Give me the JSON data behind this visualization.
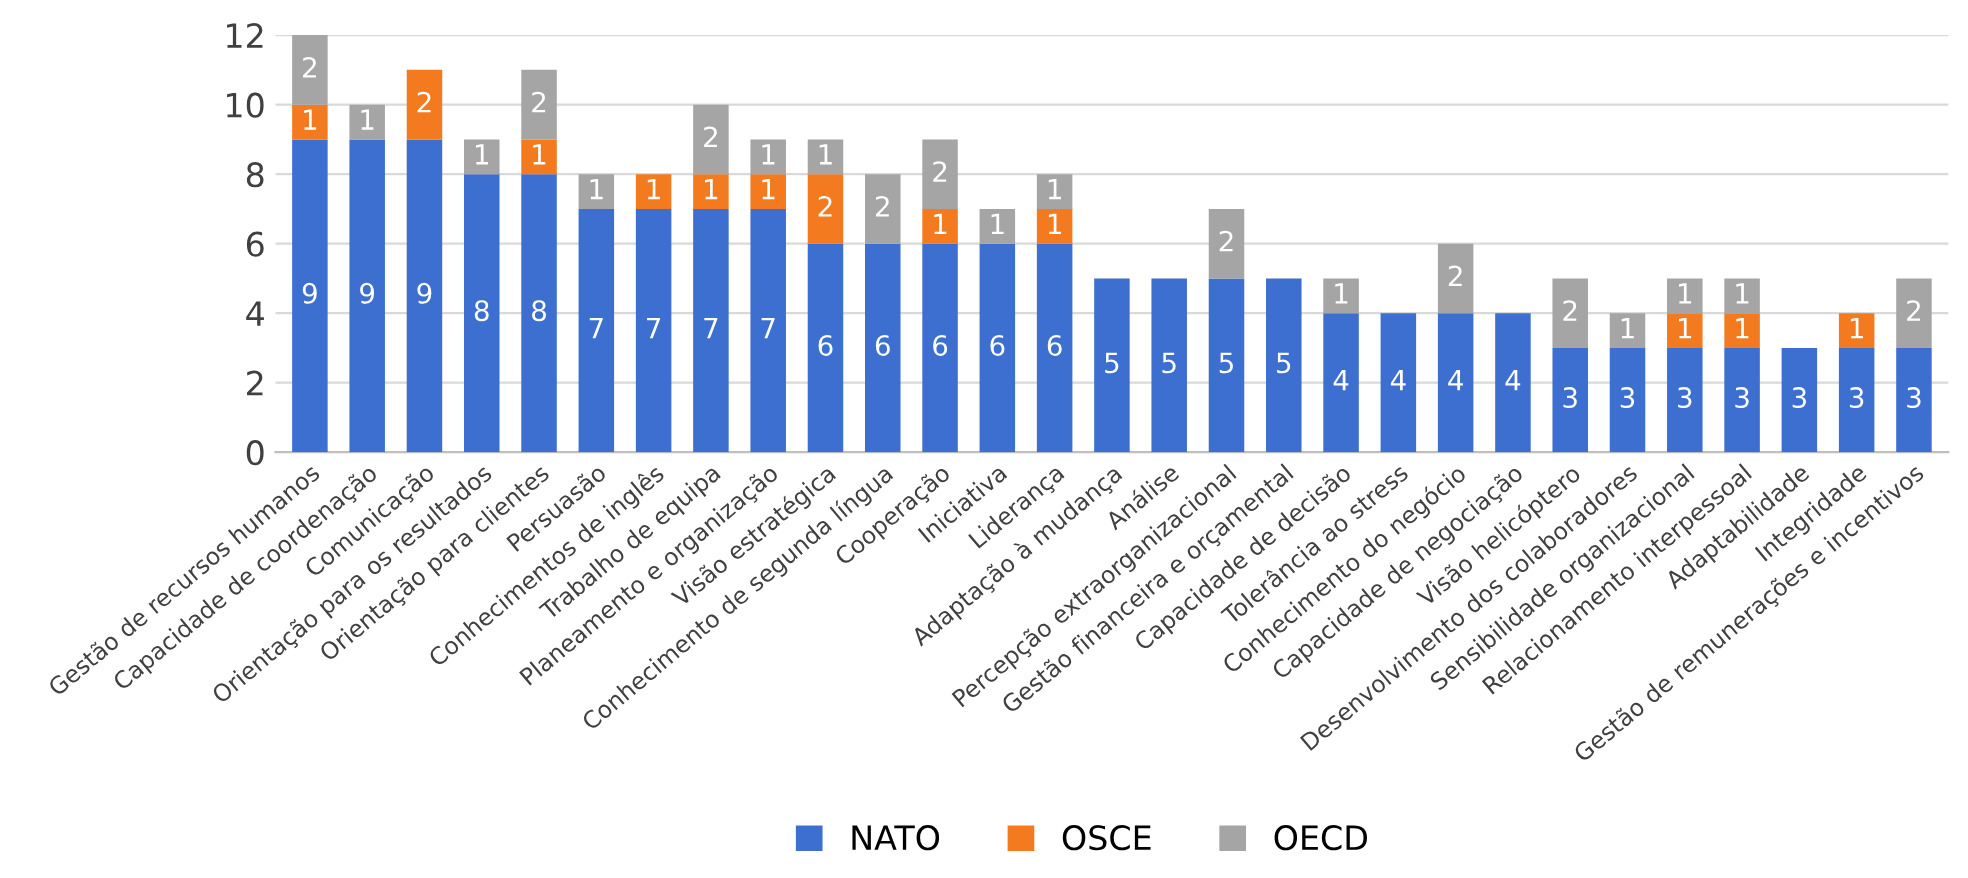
{
  "chart_data": {
    "type": "bar",
    "stacked": true,
    "categories": [
      "Gestão de recursos humanos",
      "Capacidade de coordenação",
      "Comunicação",
      "Orientação para os resultados",
      "Orientação para clientes",
      "Persuasão",
      "Conhecimentos de inglês",
      "Trabalho de equipa",
      "Planeamento e organização",
      "Visão estratégica",
      "Conhecimento de segunda língua",
      "Cooperação",
      "Iniciativa",
      "Liderança",
      "Adaptação à mudança",
      "Análise",
      "Percepção extraorganizacional",
      "Gestão financeira e orçamental",
      "Capacidade de decisão",
      "Tolerância ao stress",
      "Conhecimento do negócio",
      "Capacidade de negociação",
      "Visão helicóptero",
      "Desenvolvimento dos colaboradores",
      "Sensibilidade organizacional",
      "Relacionamento interpessoal",
      "Adaptabilidade",
      "Integridade",
      "Gestão de remunerações e incentivos"
    ],
    "series": [
      {
        "name": "NATO",
        "color": "#3d6fd0",
        "values": [
          9,
          9,
          9,
          8,
          8,
          7,
          7,
          7,
          7,
          6,
          6,
          6,
          6,
          6,
          5,
          5,
          5,
          5,
          4,
          4,
          4,
          4,
          3,
          3,
          3,
          3,
          3,
          3,
          3
        ],
        "value_labels": [
          "9",
          "9",
          "9",
          "8",
          "8",
          "7",
          "7",
          "7",
          "7",
          "6",
          "6",
          "6",
          "6",
          "6",
          "5",
          "5",
          "5",
          "5",
          "4",
          "4",
          "4",
          "4",
          "3",
          "3",
          "3",
          "3",
          "3",
          "3",
          "3"
        ]
      },
      {
        "name": "OSCE",
        "color": "#f47a20",
        "values": [
          1,
          0,
          2,
          0,
          1,
          0,
          1,
          1,
          1,
          2,
          0,
          1,
          0,
          1,
          0,
          0,
          0,
          0,
          0,
          0,
          0,
          0,
          0,
          0,
          1,
          1,
          0,
          1,
          0
        ],
        "value_labels": [
          "1",
          null,
          "2",
          null,
          "1",
          null,
          "1",
          "1",
          "1",
          "2",
          null,
          "1",
          null,
          "1",
          null,
          null,
          null,
          null,
          null,
          null,
          null,
          null,
          null,
          null,
          "1",
          "1",
          null,
          "1",
          null
        ]
      },
      {
        "name": "OECD",
        "color": "#a5a5a5",
        "values": [
          2,
          1,
          0,
          1,
          2,
          1,
          0,
          2,
          1,
          1,
          2,
          2,
          1,
          1,
          0,
          0,
          2,
          0,
          1,
          0,
          2,
          0,
          2,
          1,
          1,
          1,
          0,
          0,
          2
        ],
        "value_labels": [
          "2",
          "1",
          null,
          "1",
          "2",
          "1",
          null,
          "2",
          "1",
          "1",
          "2",
          "2",
          "1",
          "1",
          null,
          null,
          "2",
          null,
          "1",
          null,
          "2",
          null,
          "2",
          "1",
          "1",
          "1",
          null,
          null,
          "2"
        ]
      }
    ],
    "ylim": [
      0,
      12
    ],
    "yticks": [
      0,
      2,
      4,
      6,
      8,
      10,
      12
    ],
    "grid": "y",
    "legend": "bottom"
  }
}
